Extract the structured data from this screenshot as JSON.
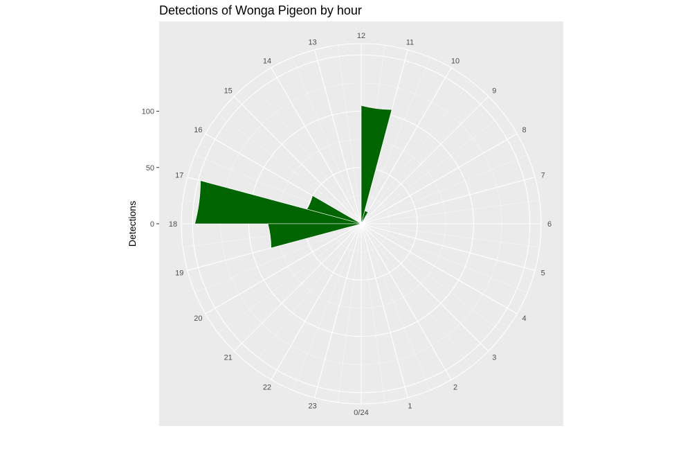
{
  "chart_data": {
    "type": "bar",
    "coord": "polar",
    "title": "Detections of Wonga Pigeon by hour",
    "xlabel": "",
    "ylabel": "Detections",
    "hour_labels": [
      "0/24",
      "1",
      "2",
      "3",
      "4",
      "5",
      "6",
      "7",
      "8",
      "9",
      "10",
      "11",
      "12",
      "13",
      "14",
      "15",
      "16",
      "17",
      "18",
      "19",
      "20",
      "21",
      "22",
      "23"
    ],
    "y_ticks": [
      0,
      50,
      100
    ],
    "ylim": [
      0,
      160
    ],
    "bar_width_hours": 1,
    "grid": true,
    "bar_color": "#006400",
    "panel_color": "#ebebeb",
    "grid_color": "#ffffff",
    "x": [
      10.5,
      11.5,
      16.5,
      17.5,
      18.5
    ],
    "values": [
      12,
      105,
      50,
      148,
      83
    ]
  }
}
